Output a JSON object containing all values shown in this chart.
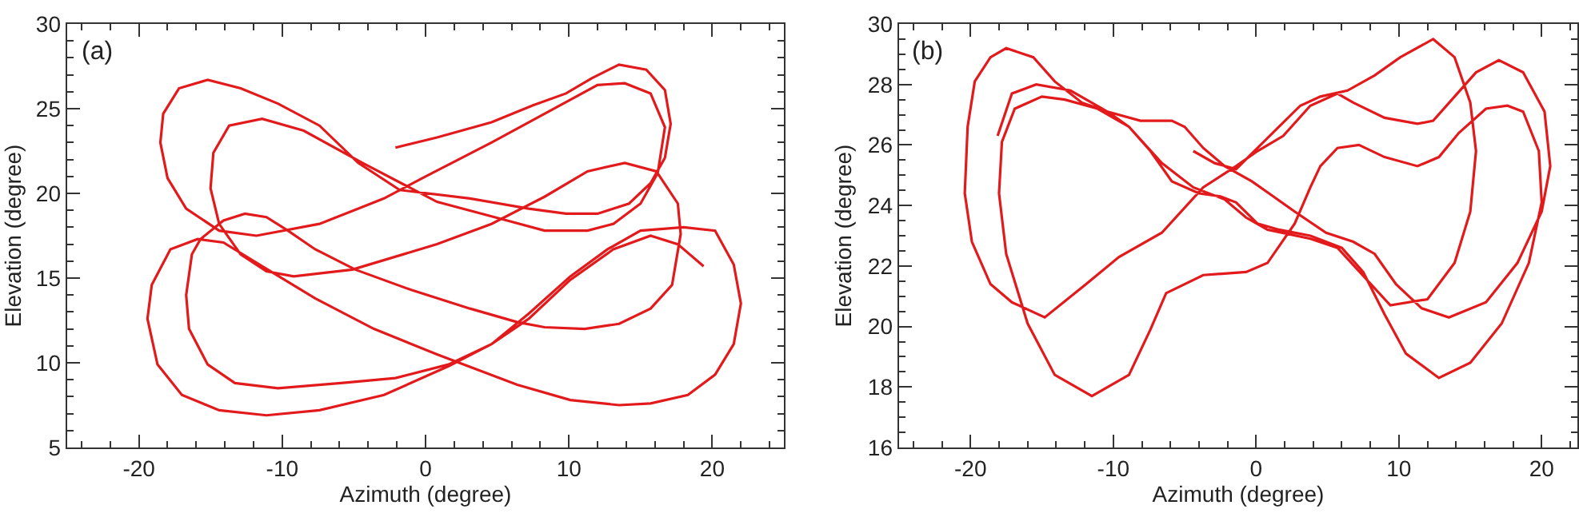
{
  "chart_data": [
    {
      "type": "line",
      "xlabel": "Azimuth (degree)",
      "ylabel": "Elevation (degree)",
      "annotations": [
        "(a)"
      ],
      "line_style": "solid",
      "xlim": [
        -25,
        25
      ],
      "ylim": [
        5,
        30
      ],
      "xticks": [
        {
          "value": -24,
          "label": null
        },
        {
          "value": -22,
          "label": null
        },
        -20,
        {
          "value": -18,
          "label": null
        },
        {
          "value": -16,
          "label": null
        },
        {
          "value": -14,
          "label": null
        },
        {
          "value": -12,
          "label": null
        },
        -10,
        {
          "value": -8,
          "label": null
        },
        {
          "value": -6,
          "label": null
        },
        {
          "value": -4,
          "label": null
        },
        {
          "value": -2,
          "label": null
        },
        0,
        {
          "value": 2,
          "label": null
        },
        {
          "value": 4,
          "label": null
        },
        {
          "value": 6,
          "label": null
        },
        {
          "value": 8,
          "label": null
        },
        10,
        {
          "value": 12,
          "label": null
        },
        {
          "value": 14,
          "label": null
        },
        {
          "value": 16,
          "label": null
        },
        {
          "value": 18,
          "label": null
        },
        20,
        {
          "value": 22,
          "label": null
        },
        {
          "value": 24,
          "label": null
        }
      ],
      "yticks": [
        5,
        {
          "value": 6,
          "label": null
        },
        {
          "value": 7,
          "label": null
        },
        {
          "value": 8,
          "label": null
        },
        {
          "value": 9,
          "label": null
        },
        10,
        {
          "value": 11,
          "label": null
        },
        {
          "value": 12,
          "label": null
        },
        {
          "value": 13,
          "label": null
        },
        {
          "value": 14,
          "label": null
        },
        15,
        {
          "value": 16,
          "label": null
        },
        {
          "value": 17,
          "label": null
        },
        {
          "value": 18,
          "label": null
        },
        {
          "value": 19,
          "label": null
        },
        20,
        {
          "value": 21,
          "label": null
        },
        {
          "value": 22,
          "label": null
        },
        {
          "value": 23,
          "label": null
        },
        {
          "value": 24,
          "label": null
        },
        25,
        {
          "value": 26,
          "label": null
        },
        {
          "value": 27,
          "label": null
        },
        {
          "value": 28,
          "label": null
        },
        {
          "value": 29,
          "label": null
        },
        30
      ],
      "series": [
        {
          "color": "#e31a1c",
          "x": [
            -2.1,
            0.8,
            4.6,
            7.5,
            9.8,
            11.6,
            13.5,
            15.4,
            16.7,
            17.1,
            16.7,
            15.7,
            14.2,
            12.0,
            9.8,
            7.2,
            3.1,
            -1.8,
            -4.7,
            -7.4,
            -10.3,
            -12.9,
            -15.2,
            -17.2,
            -18.3,
            -18.5,
            -18.0,
            -16.7,
            -14.4,
            -11.8,
            -7.4,
            -2.9,
            0.0,
            4.6,
            8.3,
            12.0,
            13.9,
            15.7,
            16.7,
            16.2,
            15.0,
            13.1,
            11.3,
            8.3,
            5.7,
            0.8,
            -4.4,
            -8.5,
            -11.4,
            -13.7,
            -14.8,
            -15.0,
            -14.4,
            -12.9,
            -11.1,
            -9.2,
            -5.1,
            0.8,
            4.6,
            8.3,
            11.3,
            13.9,
            16.1,
            17.6,
            17.8,
            17.2,
            15.7,
            13.5,
            11.1,
            8.3,
            6.4,
            3.1,
            -1.0,
            -4.9,
            -7.7,
            -9.6,
            -11.1,
            -12.6,
            -14.1,
            -15.7,
            -16.3,
            -16.7,
            -16.5,
            -15.2,
            -13.3,
            -10.3,
            -5.9,
            -2.1,
            1.6,
            4.6,
            7.2,
            10.1,
            12.7,
            15.0,
            18.0,
            20.2,
            21.5,
            22.0,
            21.5,
            20.2,
            18.3,
            15.7,
            13.5,
            10.1,
            6.4,
            0.8,
            -3.6,
            -7.7,
            -11.4,
            -14.1,
            -15.9,
            -17.8,
            -19.1,
            -19.4,
            -18.7,
            -17.0,
            -14.4,
            -11.1,
            -7.4,
            -2.9,
            1.6,
            4.6,
            7.2,
            10.1,
            13.1,
            15.7,
            17.6,
            19.4
          ],
          "values": [
            22.7,
            23.3,
            24.2,
            25.2,
            25.9,
            26.8,
            27.6,
            27.3,
            26.1,
            24.1,
            22.1,
            20.6,
            19.4,
            18.8,
            18.8,
            19.1,
            19.7,
            20.2,
            21.8,
            24.0,
            25.3,
            26.2,
            26.7,
            26.2,
            24.7,
            23.0,
            20.9,
            19.1,
            17.8,
            17.5,
            18.2,
            19.7,
            21.0,
            23.0,
            24.7,
            26.4,
            26.5,
            25.9,
            23.9,
            21.2,
            19.4,
            18.2,
            17.8,
            17.8,
            18.4,
            19.5,
            21.8,
            23.7,
            24.4,
            24.0,
            22.4,
            20.3,
            18.2,
            16.4,
            15.4,
            15.1,
            15.5,
            17.0,
            18.2,
            19.8,
            21.3,
            21.8,
            21.3,
            19.4,
            17.6,
            14.6,
            13.2,
            12.3,
            12.0,
            12.1,
            12.4,
            13.2,
            14.3,
            15.5,
            16.7,
            17.8,
            18.6,
            18.8,
            18.4,
            17.3,
            16.4,
            14.0,
            12.0,
            9.9,
            8.8,
            8.5,
            8.8,
            9.1,
            9.9,
            11.1,
            12.9,
            15.1,
            16.7,
            17.8,
            18.0,
            17.8,
            15.8,
            13.5,
            11.1,
            9.3,
            8.1,
            7.6,
            7.5,
            7.8,
            8.7,
            10.5,
            12.0,
            13.8,
            15.7,
            17.1,
            17.3,
            16.7,
            14.6,
            12.6,
            9.9,
            8.1,
            7.2,
            6.9,
            7.2,
            8.1,
            9.8,
            11.1,
            12.6,
            14.9,
            16.7,
            17.5,
            17.0,
            15.7
          ]
        }
      ]
    },
    {
      "type": "line",
      "xlabel": "Azimuth (degree)",
      "ylabel": "Elevation (degree)",
      "annotations": [
        "(b)"
      ],
      "line_style": "solid",
      "xlim": [
        -25,
        22.5
      ],
      "ylim": [
        16,
        30
      ],
      "xticks": [
        {
          "value": -24,
          "label": null
        },
        {
          "value": -22,
          "label": null
        },
        -20,
        {
          "value": -18,
          "label": null
        },
        {
          "value": -16,
          "label": null
        },
        {
          "value": -14,
          "label": null
        },
        {
          "value": -12,
          "label": null
        },
        -10,
        {
          "value": -8,
          "label": null
        },
        {
          "value": -6,
          "label": null
        },
        {
          "value": -4,
          "label": null
        },
        {
          "value": -2,
          "label": null
        },
        0,
        {
          "value": 2,
          "label": null
        },
        {
          "value": 4,
          "label": null
        },
        {
          "value": 6,
          "label": null
        },
        {
          "value": 8,
          "label": null
        },
        10,
        {
          "value": 12,
          "label": null
        },
        {
          "value": 14,
          "label": null
        },
        {
          "value": 16,
          "label": null
        },
        {
          "value": 18,
          "label": null
        },
        20,
        {
          "value": 22,
          "label": null
        }
      ],
      "yticks": [
        16,
        {
          "value": 16.5,
          "label": null
        },
        {
          "value": 17,
          "label": null
        },
        {
          "value": 17.5,
          "label": null
        },
        18,
        {
          "value": 18.5,
          "label": null
        },
        {
          "value": 19,
          "label": null
        },
        {
          "value": 19.5,
          "label": null
        },
        20,
        {
          "value": 20.5,
          "label": null
        },
        {
          "value": 21,
          "label": null
        },
        {
          "value": 21.5,
          "label": null
        },
        22,
        {
          "value": 22.5,
          "label": null
        },
        {
          "value": 23,
          "label": null
        },
        {
          "value": 23.5,
          "label": null
        },
        24,
        {
          "value": 24.5,
          "label": null
        },
        {
          "value": 25,
          "label": null
        },
        {
          "value": 25.5,
          "label": null
        },
        26,
        {
          "value": 26.5,
          "label": null
        },
        {
          "value": 27,
          "label": null
        },
        {
          "value": 27.5,
          "label": null
        },
        28,
        {
          "value": 28.5,
          "label": null
        },
        {
          "value": 29,
          "label": null
        },
        {
          "value": 29.5,
          "label": null
        },
        30
      ],
      "series": [
        {
          "color": "#e31a1c",
          "x": [
            -18.1,
            -17.1,
            -15.4,
            -13.0,
            -10.4,
            -8.1,
            -5.9,
            -5.0,
            -3.7,
            -2.2,
            -0.3,
            1.2,
            2.7,
            4.9,
            6.8,
            8.3,
            9.8,
            11.6,
            13.5,
            16.1,
            18.3,
            20.0,
            20.6,
            20.2,
            18.7,
            17.0,
            15.4,
            13.9,
            12.4,
            11.3,
            9.0,
            6.8,
            5.7,
            3.8,
            1.9,
            0.1,
            -1.4,
            -3.7,
            -6.6,
            -9.6,
            -11.9,
            -14.8,
            -17.1,
            -18.6,
            -19.9,
            -20.4,
            -20.2,
            -19.7,
            -18.6,
            -17.5,
            -15.6,
            -14.1,
            -12.2,
            -10.4,
            -8.9,
            -7.4,
            -5.9,
            -4.0,
            -2.5,
            -1.4,
            0.1,
            1.6,
            3.8,
            6.0,
            7.5,
            9.0,
            10.5,
            12.8,
            15.0,
            17.2,
            19.1,
            20.0,
            19.8,
            18.7,
            17.6,
            16.1,
            14.2,
            12.8,
            11.3,
            9.0,
            7.2,
            5.7,
            4.5,
            3.8,
            2.7,
            0.8,
            -0.7,
            -3.7,
            -6.3,
            -7.4,
            -8.9,
            -11.5,
            -14.1,
            -16.0,
            -17.5,
            -18.0,
            -17.8,
            -16.9,
            -15.0,
            -13.4,
            -11.1,
            -8.9,
            -6.6,
            -4.4,
            -2.2,
            -0.7,
            0.8,
            3.8,
            5.7,
            9.4,
            12.0,
            13.9,
            15.0,
            15.4,
            15.0,
            13.9,
            12.4,
            10.1,
            8.3,
            6.4,
            4.5,
            3.1,
            1.6,
            0.1,
            -1.4,
            -2.9,
            -4.4
          ],
          "values": [
            26.3,
            27.7,
            28.0,
            27.8,
            27.1,
            26.8,
            26.8,
            26.6,
            25.9,
            25.3,
            24.8,
            24.3,
            23.8,
            23.1,
            22.8,
            22.4,
            21.4,
            20.6,
            20.3,
            20.8,
            22.1,
            23.8,
            25.3,
            27.1,
            28.4,
            28.8,
            28.4,
            27.6,
            26.8,
            26.7,
            26.9,
            27.4,
            27.7,
            27.3,
            26.3,
            25.8,
            25.3,
            24.6,
            23.1,
            22.3,
            21.4,
            20.3,
            20.8,
            21.4,
            22.8,
            24.4,
            26.6,
            28.1,
            28.9,
            29.2,
            28.9,
            28.1,
            27.4,
            27.1,
            26.6,
            25.8,
            24.8,
            24.4,
            24.3,
            24.1,
            23.4,
            23.2,
            23.0,
            22.6,
            21.8,
            20.4,
            19.1,
            18.3,
            18.8,
            20.1,
            22.1,
            24.1,
            25.8,
            27.1,
            27.3,
            27.2,
            26.4,
            25.6,
            25.3,
            25.6,
            26.0,
            25.9,
            25.3,
            24.6,
            23.4,
            22.1,
            21.8,
            21.7,
            21.1,
            19.9,
            18.4,
            17.7,
            18.4,
            20.1,
            22.4,
            24.4,
            26.1,
            27.2,
            27.6,
            27.5,
            27.2,
            26.6,
            25.4,
            24.6,
            24.2,
            23.6,
            23.2,
            22.9,
            22.6,
            20.7,
            20.9,
            22.1,
            23.8,
            25.8,
            27.4,
            28.9,
            29.5,
            28.9,
            28.3,
            27.8,
            27.6,
            27.3,
            26.6,
            25.9,
            25.2,
            25.4,
            25.8
          ]
        }
      ]
    }
  ]
}
